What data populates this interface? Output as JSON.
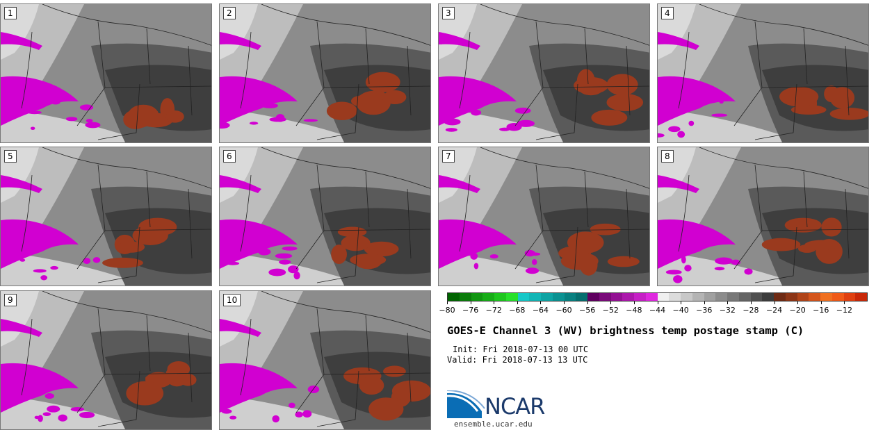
{
  "panels": [
    {
      "label": "1"
    },
    {
      "label": "2"
    },
    {
      "label": "3"
    },
    {
      "label": "4"
    },
    {
      "label": "5"
    },
    {
      "label": "6"
    },
    {
      "label": "7"
    },
    {
      "label": "8"
    },
    {
      "label": "9"
    },
    {
      "label": "10"
    }
  ],
  "colorbar": {
    "colors": [
      "#006400",
      "#0b7c0b",
      "#119611",
      "#17ad17",
      "#1ec61e",
      "#27e02a",
      "#16c8c8",
      "#12b6b6",
      "#0ea4a4",
      "#0b9292",
      "#088080",
      "#056e6e",
      "#600060",
      "#7a0a7a",
      "#931093",
      "#ac18ac",
      "#c620c6",
      "#df28df",
      "#f0f0f0",
      "#dcdcdc",
      "#c8c8c8",
      "#b4b4b4",
      "#a0a0a0",
      "#8c8c8c",
      "#787878",
      "#646464",
      "#505050",
      "#3c3c3c",
      "#6e2a14",
      "#8c3516",
      "#b04419",
      "#d4551c",
      "#f07020",
      "#f05a18",
      "#e04010",
      "#c82808"
    ],
    "tick_values": [
      "−80",
      "−76",
      "−72",
      "−68",
      "−64",
      "−60",
      "−56",
      "−52",
      "−48",
      "−44",
      "−40",
      "−36",
      "−32",
      "−28",
      "−24",
      "−20",
      "−16",
      "−12"
    ]
  },
  "title": "GOES-E Channel 3 (WV) brightness temp postage stamp (C)",
  "init": "Init: Fri 2018-07-13 00 UTC",
  "valid": "Valid: Fri 2018-07-13 13 UTC",
  "logo": {
    "text": "NCAR",
    "accent": "#0a6db5"
  },
  "url": "ensemble.ucar.edu"
}
